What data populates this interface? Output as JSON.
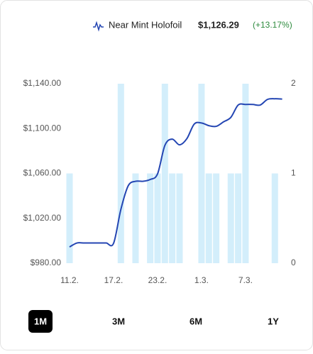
{
  "chart_data": {
    "type": "combo",
    "current_price_label": "$1,126.29",
    "change_label": "(+13.17%)",
    "change_color": "#2e8b3e",
    "categories": [
      "11.2.",
      null,
      null,
      null,
      null,
      null,
      "17.2.",
      null,
      null,
      null,
      null,
      null,
      "23.2.",
      null,
      null,
      null,
      null,
      null,
      "1.3.",
      null,
      null,
      null,
      null,
      null,
      "7.3.",
      null,
      null,
      null,
      null,
      null
    ],
    "series": [
      {
        "name": "Near Mint Holofoil",
        "type": "line",
        "color": "#2446b3",
        "values": [
          994.5,
          998,
          998,
          998,
          998,
          998,
          997.7,
          1028,
          1049,
          1053,
          1053,
          1054.6,
          1059.6,
          1085,
          1090.6,
          1085.5,
          1091,
          1104,
          1105,
          1102.6,
          1102,
          1106,
          1110,
          1121,
          1121.5,
          1121.5,
          1121,
          1126,
          1126.6,
          1126.29
        ]
      },
      {
        "type": "bar",
        "axis": "y2",
        "color": "#d3eefb",
        "values": [
          1,
          0,
          0,
          0,
          0,
          0,
          0,
          2,
          0,
          1,
          0,
          1,
          1,
          2,
          1,
          1,
          0,
          0,
          2,
          1,
          1,
          0,
          1,
          1,
          2,
          0,
          0,
          0,
          1,
          0
        ]
      }
    ],
    "ylim": [
      980,
      1140
    ],
    "yticks": [
      {
        "value": 980,
        "label": "$980.00"
      },
      {
        "value": 1020,
        "label": "$1,020.00"
      },
      {
        "value": 1060,
        "label": "$1,060.00"
      },
      {
        "value": 1100,
        "label": "$1,100.00"
      },
      {
        "value": 1140,
        "label": "$1,140.00"
      }
    ],
    "y2lim": [
      0,
      2
    ],
    "y2ticks": [
      0,
      1,
      2
    ],
    "ranges": [
      "1M",
      "3M",
      "6M",
      "1Y"
    ],
    "selected_range": 0
  }
}
